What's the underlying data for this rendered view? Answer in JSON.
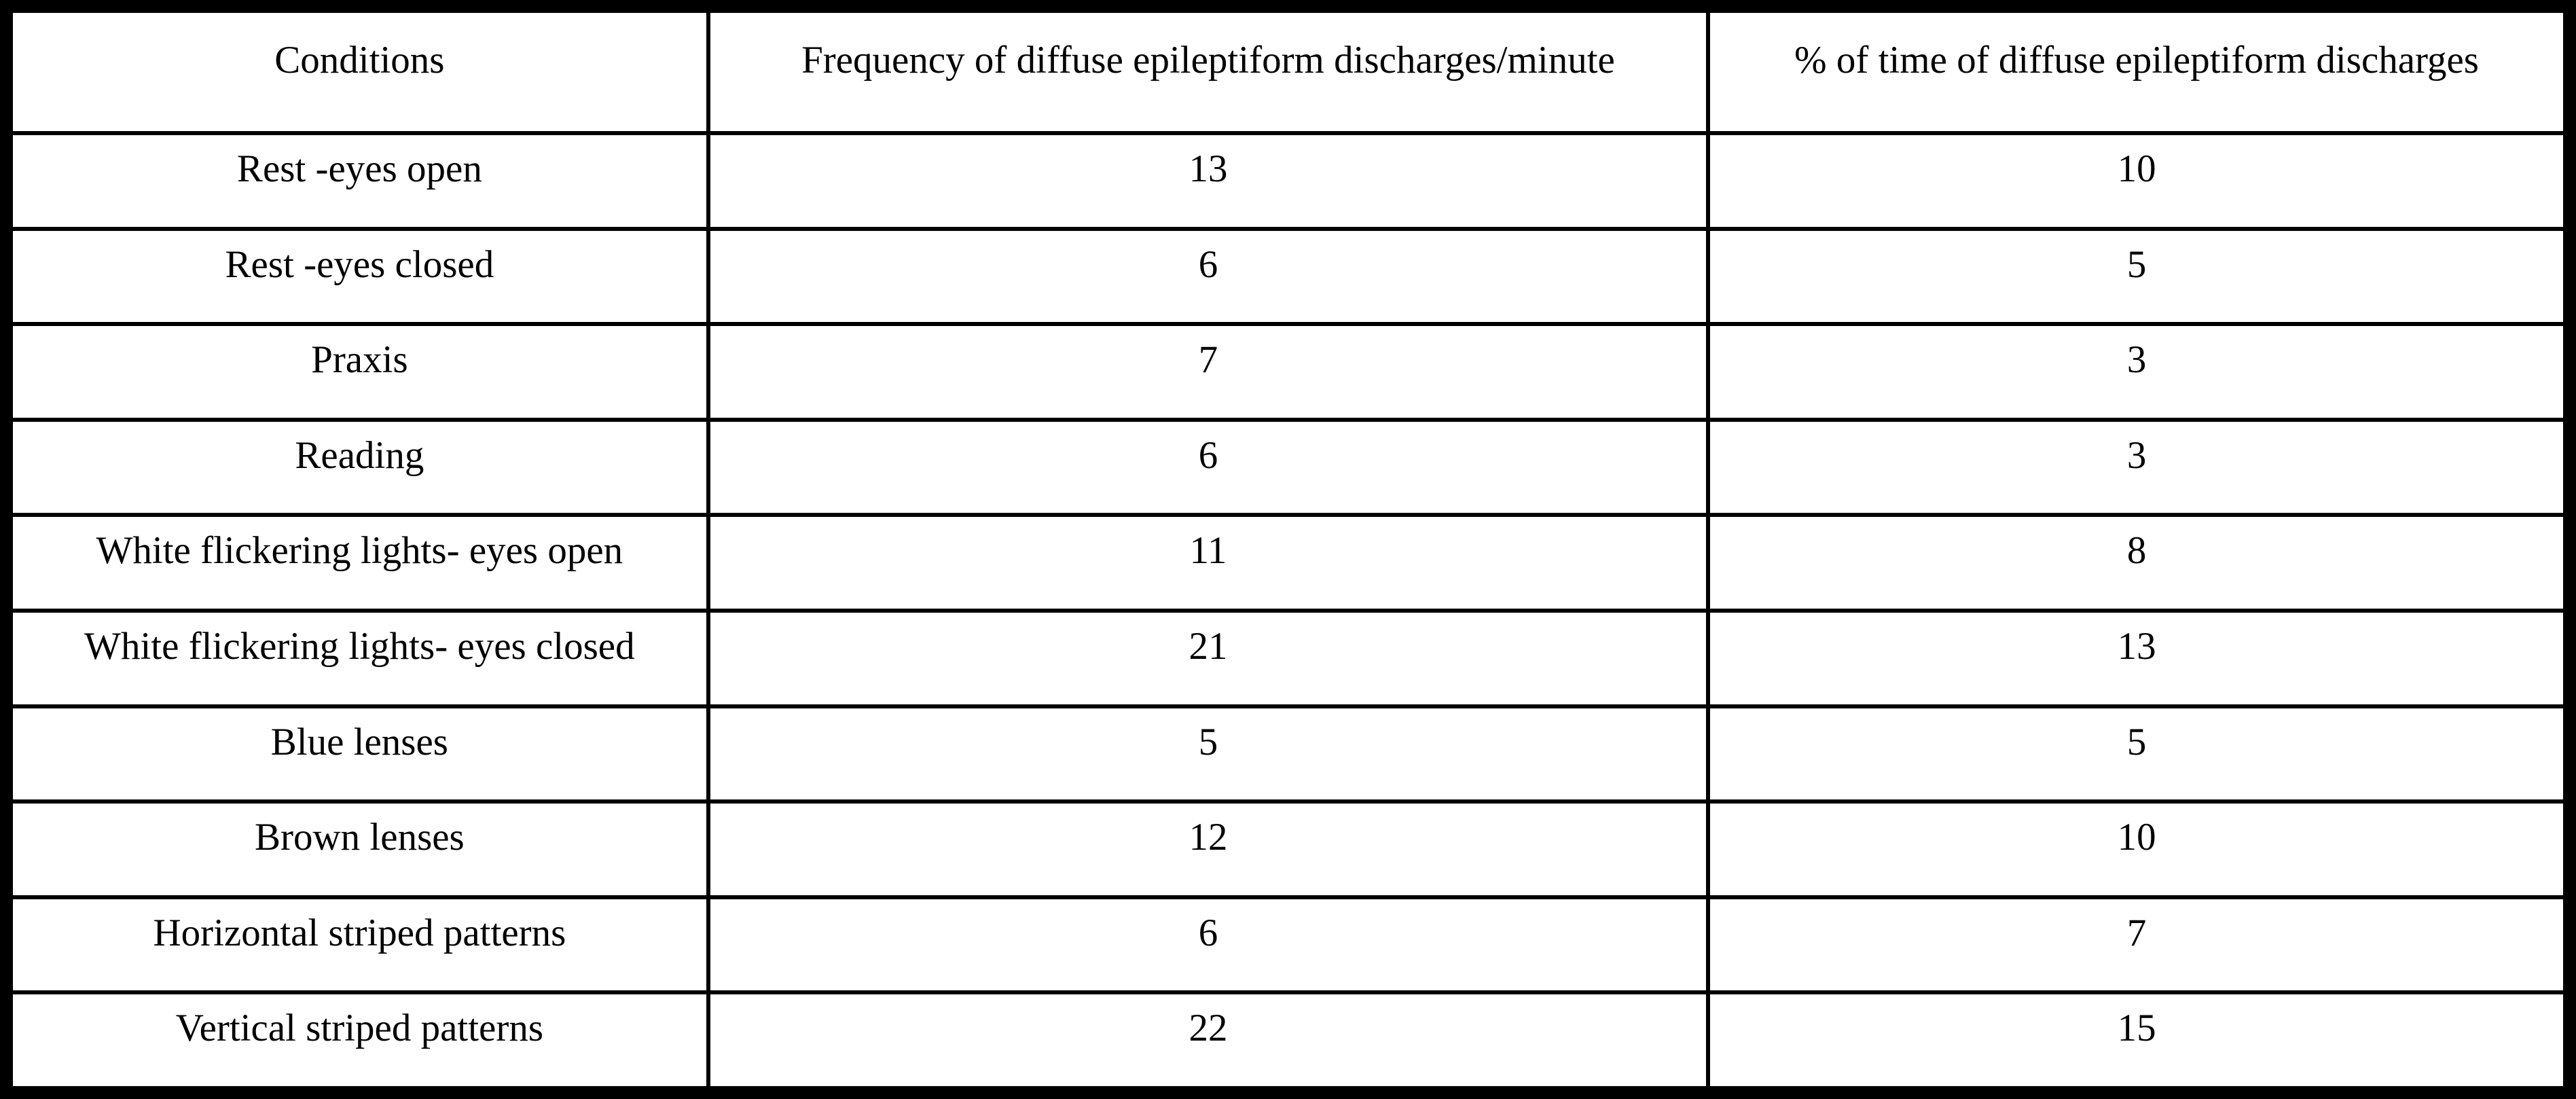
{
  "table": {
    "headers": [
      "Conditions",
      "Frequency of diffuse epileptiform discharges/minute",
      "% of time of diffuse epileptiform discharges"
    ],
    "rows": [
      {
        "condition": "Rest -eyes open",
        "frequency": "13",
        "percent": "10"
      },
      {
        "condition": "Rest -eyes closed",
        "frequency": "6",
        "percent": "5"
      },
      {
        "condition": "Praxis",
        "frequency": "7",
        "percent": "3"
      },
      {
        "condition": "Reading",
        "frequency": "6",
        "percent": "3"
      },
      {
        "condition": "White flickering lights- eyes open",
        "frequency": "11",
        "percent": "8"
      },
      {
        "condition": "White flickering lights- eyes closed",
        "frequency": "21",
        "percent": "13"
      },
      {
        "condition": "Blue lenses",
        "frequency": "5",
        "percent": "5"
      },
      {
        "condition": "Brown lenses",
        "frequency": "12",
        "percent": "10"
      },
      {
        "condition": "Horizontal striped patterns",
        "frequency": "6",
        "percent": "7"
      },
      {
        "condition": "Vertical striped patterns",
        "frequency": "22",
        "percent": "15"
      }
    ]
  }
}
